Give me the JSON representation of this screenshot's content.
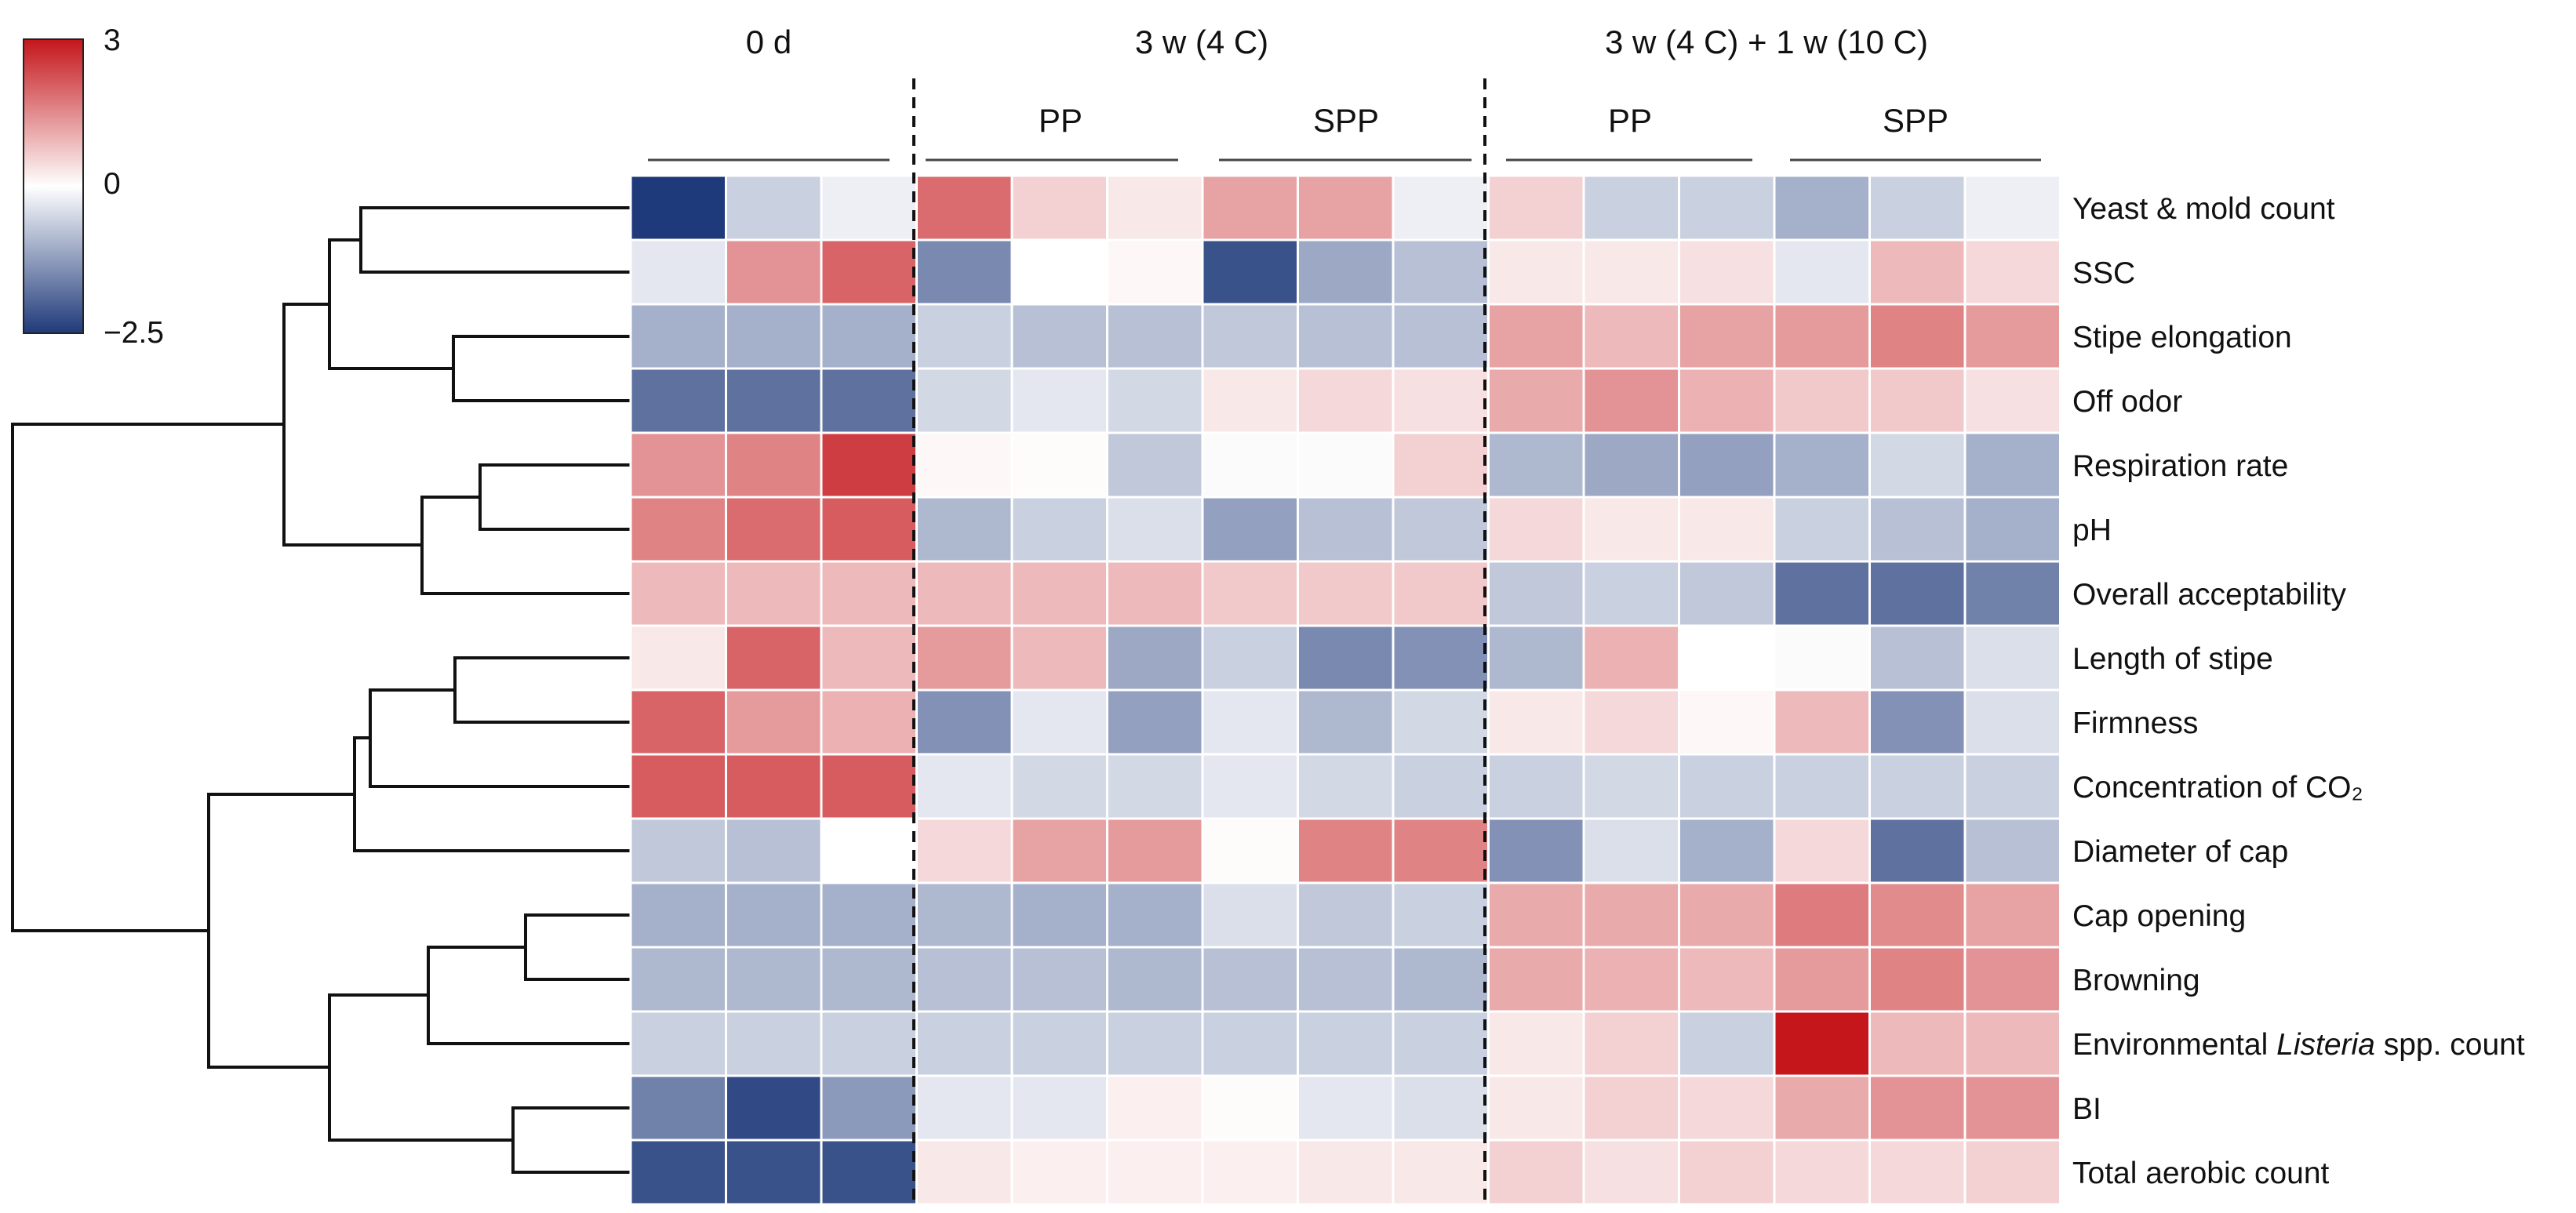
{
  "chart_data": {
    "type": "heatmap",
    "colorbar": {
      "min": -2.5,
      "max": 3,
      "tick_labels": [
        "3",
        "0",
        "−2.5"
      ],
      "ticks": [
        3,
        0,
        -2.5
      ]
    },
    "colors": {
      "low": "#1f3a7a",
      "mid": "#ffffff",
      "high": "#c4161b"
    },
    "group_headers": [
      "0 d",
      "3 w (4 C)",
      "3 w (4 C) + 1 w (10 C)"
    ],
    "subgroup_headers": [
      "PP",
      "SPP",
      "PP",
      "SPP"
    ],
    "rows": [
      {
        "label": "Yeast & mold count",
        "values": [
          -2.5,
          -0.6,
          -0.2,
          1.9,
          0.6,
          0.3,
          1.2,
          1.2,
          -0.2,
          0.6,
          -0.6,
          -0.6,
          -1.0,
          -0.6,
          -0.2
        ]
      },
      {
        "label": "SSC",
        "values": [
          -0.3,
          1.4,
          2.0,
          -1.5,
          0.0,
          0.1,
          -2.2,
          -1.1,
          -0.8,
          0.3,
          0.3,
          0.4,
          -0.3,
          0.9,
          0.5
        ]
      },
      {
        "label": "Stipe elongation",
        "values": [
          -1.0,
          -1.0,
          -1.0,
          -0.6,
          -0.8,
          -0.8,
          -0.7,
          -0.8,
          -0.8,
          1.2,
          0.9,
          1.2,
          1.3,
          1.6,
          1.3
        ]
      },
      {
        "label": "Off odor",
        "values": [
          -1.8,
          -1.8,
          -1.8,
          -0.5,
          -0.3,
          -0.5,
          0.3,
          0.5,
          0.4,
          1.1,
          1.4,
          1.0,
          0.7,
          0.7,
          0.4
        ]
      },
      {
        "label": "Respiration rate",
        "values": [
          1.4,
          1.6,
          2.5,
          0.1,
          0.05,
          -0.7,
          -0.05,
          -0.05,
          0.6,
          -0.9,
          -1.1,
          -1.2,
          -1.0,
          -0.5,
          -1.0
        ]
      },
      {
        "label": "pH",
        "values": [
          1.6,
          1.9,
          2.1,
          -0.9,
          -0.6,
          -0.4,
          -1.2,
          -0.8,
          -0.7,
          0.5,
          0.3,
          0.3,
          -0.6,
          -0.8,
          -1.0
        ]
      },
      {
        "label": "Overall acceptability",
        "values": [
          0.9,
          0.9,
          0.9,
          0.9,
          0.9,
          0.9,
          0.7,
          0.7,
          0.7,
          -0.7,
          -0.6,
          -0.7,
          -1.8,
          -1.8,
          -1.6
        ]
      },
      {
        "label": "Length of stipe",
        "values": [
          0.3,
          2.0,
          0.9,
          1.3,
          0.9,
          -1.1,
          -0.6,
          -1.5,
          -1.4,
          -0.9,
          1.0,
          0.0,
          -0.05,
          -0.8,
          -0.4
        ]
      },
      {
        "label": "Firmness",
        "values": [
          2.0,
          1.3,
          1.0,
          -1.4,
          -0.3,
          -1.2,
          -0.3,
          -0.9,
          -0.5,
          0.3,
          0.5,
          0.1,
          0.9,
          -1.4,
          -0.4
        ]
      },
      {
        "label": "Concentration of CO₂",
        "values": [
          2.1,
          2.1,
          2.1,
          -0.3,
          -0.5,
          -0.5,
          -0.3,
          -0.5,
          -0.6,
          -0.6,
          -0.5,
          -0.6,
          -0.6,
          -0.6,
          -0.6
        ]
      },
      {
        "label": "Diameter of cap",
        "values": [
          -0.7,
          -0.8,
          0.0,
          0.5,
          1.2,
          1.3,
          0.05,
          1.6,
          1.6,
          -1.4,
          -0.4,
          -1.0,
          0.5,
          -1.8,
          -0.8
        ]
      },
      {
        "label": "Cap opening",
        "values": [
          -1.0,
          -1.0,
          -1.0,
          -0.9,
          -1.0,
          -1.0,
          -0.4,
          -0.7,
          -0.6,
          1.1,
          1.1,
          1.1,
          1.7,
          1.5,
          1.2
        ]
      },
      {
        "label": "Browning",
        "values": [
          -0.9,
          -0.9,
          -0.9,
          -0.8,
          -0.8,
          -0.9,
          -0.8,
          -0.8,
          -0.9,
          1.1,
          1.0,
          0.9,
          1.3,
          1.6,
          1.4
        ]
      },
      {
        "label": "Environmental Listeria spp. count",
        "label_parts": [
          "Environmental ",
          "Listeria",
          " spp. count"
        ],
        "values": [
          -0.6,
          -0.6,
          -0.6,
          -0.6,
          -0.6,
          -0.6,
          -0.6,
          -0.6,
          -0.6,
          0.3,
          0.6,
          -0.6,
          3.0,
          0.9,
          0.9
        ]
      },
      {
        "label": "BI",
        "values": [
          -1.6,
          -2.3,
          -1.3,
          -0.3,
          -0.3,
          0.2,
          0.05,
          -0.3,
          -0.4,
          0.3,
          0.6,
          0.5,
          1.1,
          1.4,
          1.4
        ]
      },
      {
        "label": "Total aerobic count",
        "values": [
          -2.2,
          -2.2,
          -2.2,
          0.3,
          0.2,
          0.2,
          0.2,
          0.3,
          0.3,
          0.6,
          0.4,
          0.6,
          0.5,
          0.5,
          0.6
        ]
      }
    ]
  }
}
